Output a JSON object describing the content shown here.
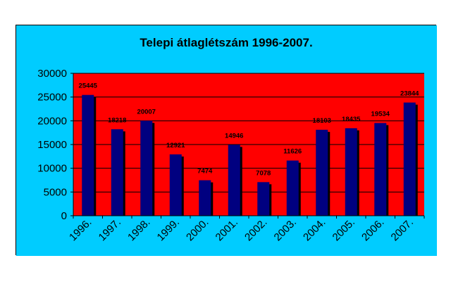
{
  "colors": {
    "chart_area": "#00CCFF",
    "plot_area": "#FF0000",
    "bar": "#000080",
    "bar_shadow": "#000000",
    "gridline": "#000000"
  },
  "chart_data": {
    "type": "bar",
    "title": "Telepi átlaglétszám 1996-2007.",
    "xlabel": "",
    "ylabel": "",
    "categories": [
      "1996.",
      "1997.",
      "1998.",
      "1999.",
      "2000.",
      "2001.",
      "2002.",
      "2003.",
      "2004.",
      "2005.",
      "2006.",
      "2007."
    ],
    "values": [
      25445,
      18218,
      20007,
      12921,
      7474,
      14946,
      7078,
      11626,
      18103,
      18435,
      19534,
      23844
    ],
    "data_labels": [
      "25445",
      "18218",
      "20007",
      "12921",
      "7474",
      "14946",
      "7078",
      "11626",
      "18103",
      "18435",
      "19534",
      "23844"
    ],
    "ylim": [
      0,
      30000
    ],
    "yticks": [
      "0",
      "5000",
      "10000",
      "15000",
      "20000",
      "25000",
      "30000"
    ],
    "grid": true,
    "legend": "none"
  }
}
